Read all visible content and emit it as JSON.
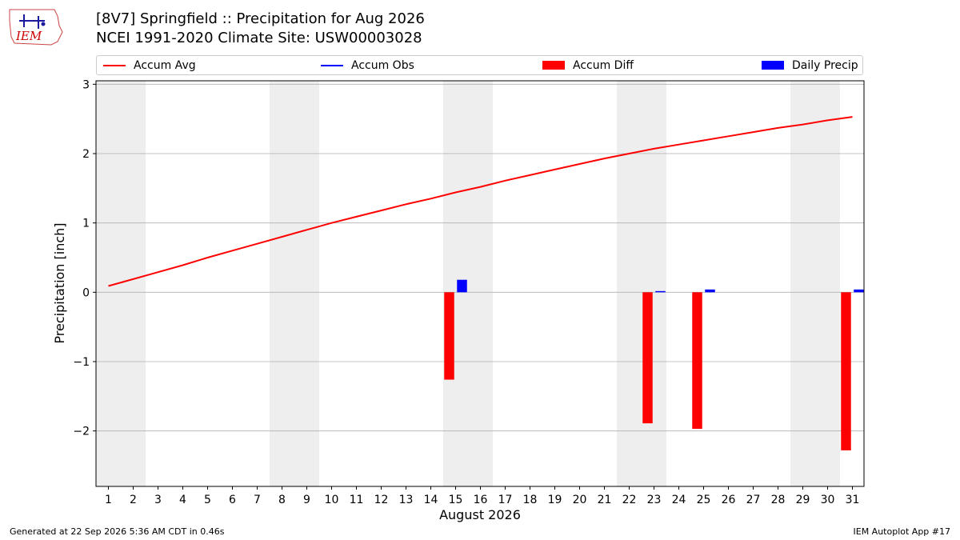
{
  "header": {
    "title_line1": "[8V7] Springfield :: Precipitation for Aug 2026",
    "title_line2": "NCEI 1991-2020 Climate Site: USW00003028",
    "logo_text": "IEM"
  },
  "footer": {
    "generated": "Generated at 22 Sep 2026 5:36 AM CDT in 0.46s",
    "app": "IEM Autoplot App #17"
  },
  "colors": {
    "avg": "#ff0000",
    "obs": "#0000ff",
    "diff": "#ff0000",
    "daily": "#0000ff",
    "weekend_shade": "#eeeeee",
    "grid": "#b0b0b0"
  },
  "chart_data": {
    "type": "bar",
    "xlabel": "August 2026",
    "ylabel": "Precipitation [inch]",
    "ylim": [
      -2.8,
      3.05
    ],
    "yticks": [
      3,
      2,
      1,
      0,
      -1,
      -2
    ],
    "ytick_labels": [
      "3",
      "2",
      "1",
      "0",
      "−1",
      "−2"
    ],
    "grid": true,
    "legend_position": "top",
    "legend": [
      "Accum Avg",
      "Accum Obs",
      "Accum Diff",
      "Daily Precip"
    ],
    "days": [
      1,
      2,
      3,
      4,
      5,
      6,
      7,
      8,
      9,
      10,
      11,
      12,
      13,
      14,
      15,
      16,
      17,
      18,
      19,
      20,
      21,
      22,
      23,
      24,
      25,
      26,
      27,
      28,
      29,
      30,
      31
    ],
    "weekend_days": [
      1,
      2,
      8,
      9,
      15,
      16,
      22,
      23,
      29,
      30
    ],
    "accum_avg": [
      0.09,
      0.19,
      0.29,
      0.39,
      0.5,
      0.6,
      0.7,
      0.8,
      0.9,
      1.0,
      1.09,
      1.18,
      1.27,
      1.35,
      1.44,
      1.52,
      1.61,
      1.69,
      1.77,
      1.85,
      1.93,
      2.0,
      2.07,
      2.13,
      2.19,
      2.25,
      2.31,
      2.37,
      2.42,
      2.48,
      2.53
    ],
    "accum_diff": [
      {
        "day": 15,
        "value": -1.26
      },
      {
        "day": 23,
        "value": -1.89
      },
      {
        "day": 25,
        "value": -1.97
      },
      {
        "day": 31,
        "value": -2.28
      }
    ],
    "daily_precip": [
      {
        "day": 15,
        "value": 0.18
      },
      {
        "day": 23,
        "value": 0.01
      },
      {
        "day": 25,
        "value": 0.04
      },
      {
        "day": 31,
        "value": 0.04
      }
    ]
  }
}
